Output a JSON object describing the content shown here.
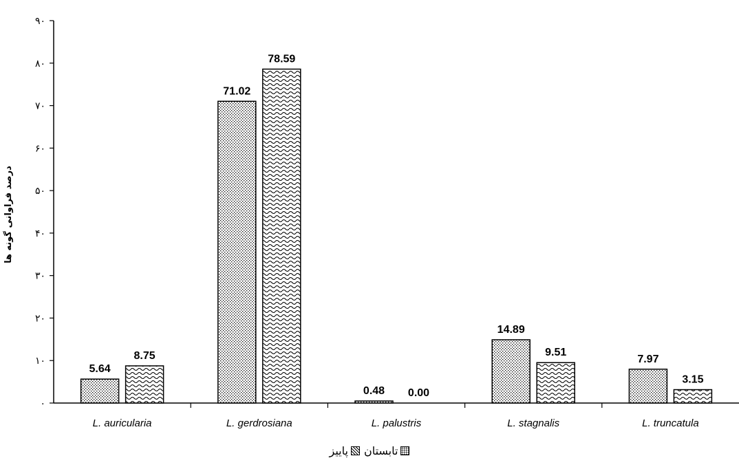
{
  "chart_data": {
    "type": "bar",
    "title": "",
    "xlabel": "",
    "ylabel": "درصد فراوانی گونه ها",
    "categories": [
      "L. auricularia",
      "L. gerdrosiana",
      "L. palustris",
      "L. stagnalis",
      "L. truncatula"
    ],
    "series": [
      {
        "name": "تابستان",
        "pattern": "dots",
        "values": [
          5.64,
          71.02,
          0.48,
          14.89,
          7.97
        ],
        "labels": [
          "5.64",
          "71.02",
          "0.48",
          "14.89",
          "7.97"
        ]
      },
      {
        "name": "پاییز",
        "pattern": "waves",
        "values": [
          8.75,
          78.59,
          0.0,
          9.51,
          3.15
        ],
        "labels": [
          "8.75",
          "78.59",
          "0.00",
          "9.51",
          "3.15"
        ]
      }
    ],
    "ylim": [
      0,
      90
    ],
    "yticks": [
      0,
      10,
      20,
      30,
      40,
      50,
      60,
      70,
      80,
      90
    ],
    "ytick_labels": [
      "۰",
      "۱۰",
      "۲۰",
      "۳۰",
      "۴۰",
      "۵۰",
      "۶۰",
      "۷۰",
      "۸۰",
      "۹۰"
    ],
    "grid": false,
    "legend_position": "bottom"
  },
  "colors": {
    "bar_fill": "#ffffff",
    "pattern": "#000000",
    "axis": "#000000"
  }
}
